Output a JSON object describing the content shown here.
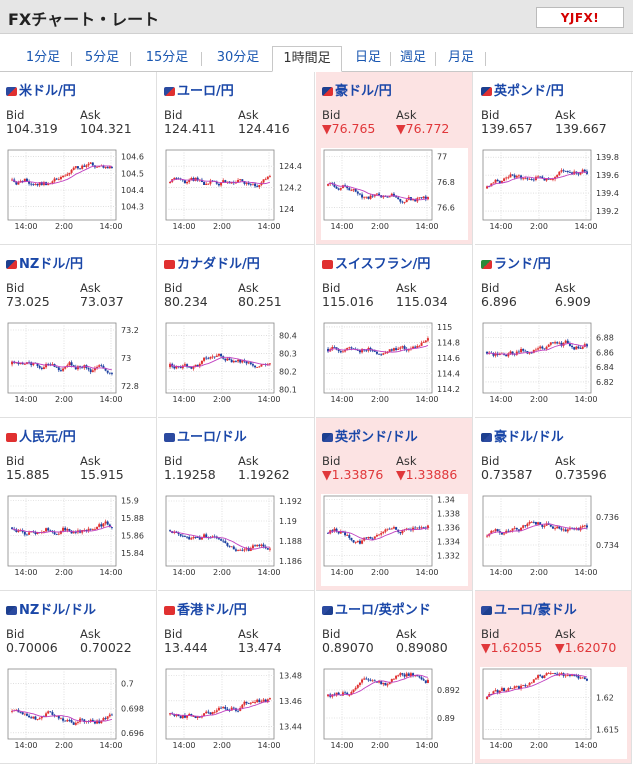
{
  "header": {
    "title": "FXチャート・レート",
    "logo": "YJFX!"
  },
  "tabs": [
    {
      "label": "1分足"
    },
    {
      "label": "5分足"
    },
    {
      "label": "15分足"
    },
    {
      "label": "30分足"
    },
    {
      "label": "1時間足"
    },
    {
      "label": "日足"
    },
    {
      "label": "週足"
    },
    {
      "label": "月足"
    }
  ],
  "active_tab": 4,
  "labels": {
    "bid": "Bid",
    "ask": "Ask"
  },
  "x_ticks": [
    "14:00",
    "2:00",
    "14:00"
  ],
  "pairs": [
    {
      "name": "米ドル/円",
      "bid": "104.319",
      "ask": "104.321",
      "down": false,
      "highlight": false,
      "y_ticks": [
        "104.6",
        "104.5",
        "104.4",
        "104.3"
      ],
      "ylim": [
        104.22,
        104.64
      ],
      "flag": [
        "#2b4aa0",
        "#e03030"
      ]
    },
    {
      "name": "ユーロ/円",
      "bid": "124.411",
      "ask": "124.416",
      "down": false,
      "highlight": false,
      "y_ticks": [
        "124.4",
        "124.2",
        "124"
      ],
      "ylim": [
        123.9,
        124.55
      ],
      "flag": [
        "#2b4aa0",
        "#e03030"
      ]
    },
    {
      "name": "豪ドル/円",
      "bid": "▼76.765",
      "ask": "▼76.772",
      "down": true,
      "highlight": true,
      "y_ticks": [
        "77",
        "76.8",
        "76.6"
      ],
      "ylim": [
        76.5,
        77.05
      ],
      "flag": [
        "#1d3f8f",
        "#e03030"
      ]
    },
    {
      "name": "英ポンド/円",
      "bid": "139.657",
      "ask": "139.667",
      "down": false,
      "highlight": false,
      "y_ticks": [
        "139.8",
        "139.6",
        "139.4",
        "139.2"
      ],
      "ylim": [
        139.1,
        139.88
      ],
      "flag": [
        "#1d3f8f",
        "#e03030"
      ]
    },
    {
      "name": "NZドル/円",
      "bid": "73.025",
      "ask": "73.037",
      "down": false,
      "highlight": false,
      "y_ticks": [
        "73.2",
        "73",
        "72.8"
      ],
      "ylim": [
        72.75,
        73.25
      ],
      "flag": [
        "#1d3f8f",
        "#e03030"
      ]
    },
    {
      "name": "カナダドル/円",
      "bid": "80.234",
      "ask": "80.251",
      "down": false,
      "highlight": false,
      "y_ticks": [
        "80.4",
        "80.3",
        "80.2",
        "80.1"
      ],
      "ylim": [
        80.08,
        80.47
      ],
      "flag": [
        "#e03030",
        "#e03030"
      ]
    },
    {
      "name": "スイスフラン/円",
      "bid": "115.016",
      "ask": "115.034",
      "down": false,
      "highlight": false,
      "y_ticks": [
        "115",
        "114.8",
        "114.6",
        "114.4",
        "114.2"
      ],
      "ylim": [
        114.15,
        115.05
      ],
      "flag": [
        "#e03030",
        "#e03030"
      ]
    },
    {
      "name": "ランド/円",
      "bid": "6.896",
      "ask": "6.909",
      "down": false,
      "highlight": false,
      "y_ticks": [
        "6.88",
        "6.86",
        "6.84",
        "6.82"
      ],
      "ylim": [
        6.805,
        6.9
      ],
      "flag": [
        "#2a8a3a",
        "#e03030"
      ]
    },
    {
      "name": "人民元/円",
      "bid": "15.885",
      "ask": "15.915",
      "down": false,
      "highlight": false,
      "y_ticks": [
        "15.9",
        "15.88",
        "15.86",
        "15.84"
      ],
      "ylim": [
        15.825,
        15.905
      ],
      "flag": [
        "#e03030",
        "#e03030"
      ]
    },
    {
      "name": "ユーロ/ドル",
      "bid": "1.19258",
      "ask": "1.19262",
      "down": false,
      "highlight": false,
      "y_ticks": [
        "1.192",
        "1.19",
        "1.188",
        "1.186"
      ],
      "ylim": [
        1.1855,
        1.1925
      ],
      "flag": [
        "#2b4aa0",
        "#2b4aa0"
      ]
    },
    {
      "name": "英ポンド/ドル",
      "bid": "▼1.33876",
      "ask": "▼1.33886",
      "down": true,
      "highlight": true,
      "y_ticks": [
        "1.34",
        "1.338",
        "1.336",
        "1.334",
        "1.332"
      ],
      "ylim": [
        1.3305,
        1.3405
      ],
      "flag": [
        "#1d3f8f",
        "#2b4aa0"
      ]
    },
    {
      "name": "豪ドル/ドル",
      "bid": "0.73587",
      "ask": "0.73596",
      "down": false,
      "highlight": false,
      "y_ticks": [
        "0.736",
        "0.734"
      ],
      "ylim": [
        0.7325,
        0.7375
      ],
      "flag": [
        "#1d3f8f",
        "#2b4aa0"
      ]
    },
    {
      "name": "NZドル/ドル",
      "bid": "0.70006",
      "ask": "0.70022",
      "down": false,
      "highlight": false,
      "y_ticks": [
        "0.7",
        "0.698",
        "0.696"
      ],
      "ylim": [
        0.6955,
        0.7012
      ],
      "flag": [
        "#1d3f8f",
        "#2b4aa0"
      ]
    },
    {
      "name": "香港ドル/円",
      "bid": "13.444",
      "ask": "13.474",
      "down": false,
      "highlight": false,
      "y_ticks": [
        "13.48",
        "13.46",
        "13.44"
      ],
      "ylim": [
        13.43,
        13.485
      ],
      "flag": [
        "#e03030",
        "#e03030"
      ]
    },
    {
      "name": "ユーロ/英ポンド",
      "bid": "0.89070",
      "ask": "0.89080",
      "down": false,
      "highlight": false,
      "y_ticks": [
        "0.892",
        "0.89"
      ],
      "ylim": [
        0.8885,
        0.8935
      ],
      "flag": [
        "#2b4aa0",
        "#1d3f8f"
      ]
    },
    {
      "name": "ユーロ/豪ドル",
      "bid": "▼1.62055",
      "ask": "▼1.62070",
      "down": true,
      "highlight": true,
      "y_ticks": [
        "1.62",
        "1.615"
      ],
      "ylim": [
        1.6135,
        1.6245
      ],
      "flag": [
        "#2b4aa0",
        "#1d3f8f"
      ]
    }
  ],
  "colors": {
    "up": "#e03030",
    "down": "#1b3fa0",
    "ma": "#c040c0",
    "highlight": "#fce3e3",
    "down_text": "#e0373a"
  }
}
